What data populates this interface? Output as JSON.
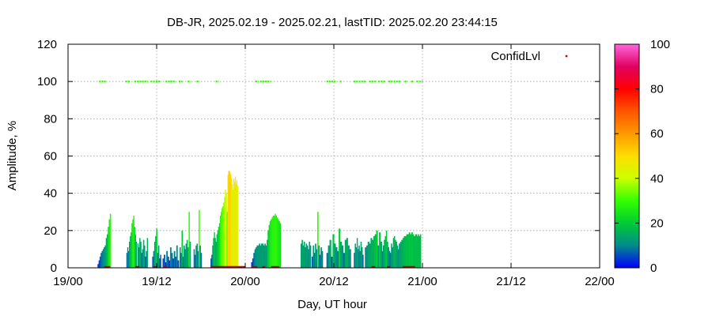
{
  "chart_data": {
    "type": "bar",
    "title": "DB-JR, 2025.02.19 - 2025.02.21, lastTID: 2025.02.20 23:44:15",
    "xlabel": "Day, UT hour",
    "ylabel": "Amplitude, %",
    "x_range_hours": [
      0,
      72
    ],
    "ylim": [
      0,
      120
    ],
    "grid": true,
    "legend_position": "top-right",
    "legend": {
      "label": "ConfidLvl",
      "marker_color": "#cc0000"
    },
    "x_ticks": [
      {
        "hour": 0,
        "label": "19/00"
      },
      {
        "hour": 12,
        "label": "19/12"
      },
      {
        "hour": 24,
        "label": "20/00"
      },
      {
        "hour": 36,
        "label": "20/12"
      },
      {
        "hour": 48,
        "label": "21/00"
      },
      {
        "hour": 60,
        "label": "21/12"
      },
      {
        "hour": 72,
        "label": "22/00"
      }
    ],
    "y_ticks": [
      {
        "value": 0,
        "label": "0"
      },
      {
        "value": 20,
        "label": "20"
      },
      {
        "value": 40,
        "label": "40"
      },
      {
        "value": 60,
        "label": "60"
      },
      {
        "value": 80,
        "label": "80"
      },
      {
        "value": 100,
        "label": "100"
      },
      {
        "value": 120,
        "label": "120"
      }
    ],
    "colorbar": {
      "range": [
        0,
        100
      ],
      "ticks": [
        {
          "value": 0,
          "label": "0"
        },
        {
          "value": 20,
          "label": "20"
        },
        {
          "value": 40,
          "label": "40"
        },
        {
          "value": 60,
          "label": "60"
        },
        {
          "value": 80,
          "label": "80"
        },
        {
          "value": 100,
          "label": "100"
        }
      ],
      "stops": [
        {
          "value": 0,
          "color": "#0000ff"
        },
        {
          "value": 10,
          "color": "#008b8b"
        },
        {
          "value": 20,
          "color": "#00cc33"
        },
        {
          "value": 30,
          "color": "#33ff00"
        },
        {
          "value": 40,
          "color": "#ccff00"
        },
        {
          "value": 50,
          "color": "#ffdd00"
        },
        {
          "value": 60,
          "color": "#ff9900"
        },
        {
          "value": 70,
          "color": "#ff5500"
        },
        {
          "value": 80,
          "color": "#ff0000"
        },
        {
          "value": 90,
          "color": "#e00060"
        },
        {
          "value": 100,
          "color": "#ff66dd"
        }
      ]
    },
    "amplitude_series": {
      "name": "Amplitude",
      "segments": [
        {
          "start": 4.0,
          "end": 5.8,
          "values": [
            2,
            4,
            6,
            8,
            9,
            10,
            11,
            12,
            16,
            18,
            22,
            26,
            29
          ]
        },
        {
          "start": 7.9,
          "end": 9.3,
          "values": [
            8,
            11,
            9,
            14,
            17,
            19,
            24,
            26,
            28,
            22,
            18,
            14
          ]
        },
        {
          "start": 9.4,
          "end": 10.8,
          "values": [
            13,
            11,
            16,
            14,
            8,
            10,
            15,
            12,
            6,
            9,
            16
          ]
        },
        {
          "start": 11.4,
          "end": 12.6,
          "values": [
            6,
            9,
            14,
            17,
            21,
            8,
            12,
            5,
            7
          ]
        },
        {
          "start": 12.8,
          "end": 15.0,
          "values": [
            5,
            7,
            3,
            9,
            6,
            4,
            11,
            8,
            5,
            9,
            6,
            12,
            4
          ]
        },
        {
          "start": 15.1,
          "end": 16.6,
          "values": [
            11,
            8,
            20,
            6,
            12,
            10,
            13,
            15,
            11,
            30,
            14
          ]
        },
        {
          "start": 17.0,
          "end": 18.1,
          "values": [
            10,
            7,
            12,
            13,
            9,
            31,
            12,
            8
          ]
        },
        {
          "start": 19.3,
          "end": 20.1,
          "values": [
            5,
            7,
            12,
            16,
            19,
            16,
            14
          ]
        },
        {
          "start": 20.1,
          "end": 21.6,
          "values": [
            18,
            20,
            22,
            24,
            28,
            30,
            32,
            33,
            35,
            38,
            42,
            40,
            30
          ]
        },
        {
          "start": 21.6,
          "end": 22.4,
          "values": [
            50,
            52,
            52,
            51,
            50,
            48,
            45,
            42
          ]
        },
        {
          "start": 22.4,
          "end": 23.0,
          "values": [
            48,
            46,
            49,
            45,
            47,
            44
          ]
        },
        {
          "start": 24.8,
          "end": 26.9,
          "values": [
            3,
            5,
            8,
            10,
            11,
            12,
            12,
            13,
            12,
            13,
            13,
            12,
            13,
            12
          ]
        },
        {
          "start": 26.9,
          "end": 28.8,
          "values": [
            15,
            20,
            23,
            25,
            26,
            27,
            28,
            28,
            29,
            28,
            27,
            26,
            25,
            24
          ]
        },
        {
          "start": 31.5,
          "end": 32.9,
          "values": [
            13,
            15,
            12,
            14,
            11,
            13,
            12,
            10,
            14,
            12
          ]
        },
        {
          "start": 33.0,
          "end": 34.5,
          "values": [
            6,
            12,
            8,
            13,
            10,
            30,
            12,
            7,
            11,
            9
          ]
        },
        {
          "start": 35.0,
          "end": 38.3,
          "values": [
            8,
            12,
            15,
            6,
            18,
            13,
            11,
            9,
            21,
            14,
            12,
            8,
            15,
            16,
            12,
            10
          ]
        },
        {
          "start": 38.7,
          "end": 40.0,
          "values": [
            8,
            13,
            11,
            16,
            10,
            12,
            9,
            14,
            11,
            7
          ]
        },
        {
          "start": 40.2,
          "end": 42.5,
          "values": [
            11,
            12,
            14,
            13,
            16,
            15,
            17,
            18,
            20,
            12,
            19,
            14
          ]
        },
        {
          "start": 42.5,
          "end": 43.6,
          "values": [
            9,
            12,
            15,
            17,
            20,
            14,
            11,
            9
          ]
        },
        {
          "start": 43.6,
          "end": 44.8,
          "values": [
            8,
            13,
            11,
            16,
            17,
            15,
            14,
            12,
            10
          ]
        },
        {
          "start": 44.8,
          "end": 47.0,
          "values": [
            13,
            14,
            15,
            16,
            17,
            17,
            18,
            18,
            19,
            18,
            19,
            18,
            17
          ]
        },
        {
          "start": 47.0,
          "end": 47.8,
          "values": [
            18,
            18,
            17,
            18,
            17,
            18
          ]
        }
      ]
    },
    "confidence_series": {
      "name": "ConfidLvl",
      "value": 100,
      "segments": [
        [
          4.2,
          5.1
        ],
        [
          7.8,
          8.4
        ],
        [
          9.0,
          10.8
        ],
        [
          11.2,
          12.6
        ],
        [
          13.2,
          14.6
        ],
        [
          15.0,
          15.5
        ],
        [
          16.2,
          16.6
        ],
        [
          17.4,
          17.8
        ],
        [
          20.0,
          20.4
        ],
        [
          25.4,
          25.8
        ],
        [
          26.0,
          27.5
        ],
        [
          35.0,
          36.4
        ],
        [
          36.8,
          37.1
        ],
        [
          38.7,
          40.3
        ],
        [
          40.8,
          41.7
        ],
        [
          42.0,
          43.0
        ],
        [
          43.4,
          45.0
        ],
        [
          45.6,
          46.0
        ],
        [
          46.5,
          46.8
        ],
        [
          47.2,
          48.0
        ]
      ]
    },
    "low_markers": {
      "value": 0,
      "color": "#cc0000",
      "segments": [
        [
          4.9,
          5.7
        ],
        [
          9.1,
          9.7
        ],
        [
          11.5,
          12.0
        ],
        [
          12.9,
          13.4
        ],
        [
          19.3,
          24.0
        ],
        [
          24.8,
          25.6
        ],
        [
          26.3,
          26.7
        ],
        [
          27.5,
          28.6
        ],
        [
          41.1,
          41.6
        ],
        [
          43.2,
          43.6
        ],
        [
          45.3,
          47.0
        ]
      ]
    }
  }
}
